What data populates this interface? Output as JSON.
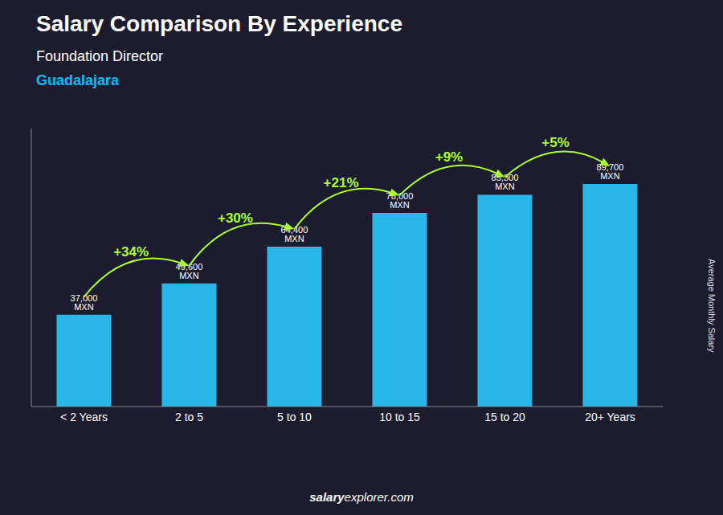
{
  "chart_data": {
    "type": "bar",
    "title": "Salary Comparison By Experience",
    "subtitle": "Foundation Director",
    "city": "Guadalajara",
    "city_color": "#00BFFF",
    "categories": [
      "< 2 Years",
      "2 to 5",
      "5 to 10",
      "10 to 15",
      "15 to 20",
      "20+ Years"
    ],
    "values": [
      37000,
      49600,
      64400,
      78000,
      85300,
      89700
    ],
    "value_labels": [
      "37,000 MXN",
      "49,600 MXN",
      "64,400 MXN",
      "78,000 MXN",
      "85,300 MXN",
      "89,700 MXN"
    ],
    "data_labels": true,
    "pct_changes": [
      null,
      "+34%",
      "+30%",
      "+21%",
      "+9%",
      "+5%"
    ],
    "pct_color": "#ADFF2F",
    "color": "#29B6E8",
    "ylabel": "Average Monthly Salary",
    "ylim": [
      0,
      112000
    ],
    "tick_labels": "x",
    "grid": false,
    "footer": [
      "salary",
      "explorer.com"
    ]
  }
}
